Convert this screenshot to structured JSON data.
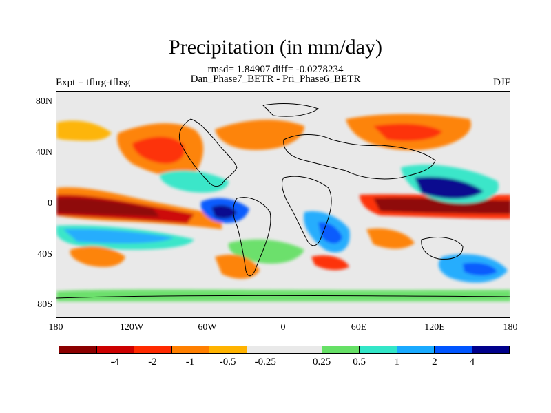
{
  "title": "Precipitation (in mm/day)",
  "stats_line": "rmsd= 1.84907 diff= -0.0278234",
  "comparison_line": "Dan_Phase7_BETR - Pri_Phase6_BETR",
  "experiment_label": "Expt = tfhrg-tfbsg",
  "season_label": "DJF",
  "y_ticks": [
    "80N",
    "40N",
    "0",
    "40S",
    "80S"
  ],
  "x_ticks": [
    "180",
    "120W",
    "60W",
    "0",
    "60E",
    "120E",
    "180"
  ],
  "colorbar": {
    "colors": [
      "#8b0000",
      "#cc0000",
      "#ff2a00",
      "#ff7f00",
      "#ffb300",
      "#e9e9e9",
      "#e9e9e9",
      "#66e066",
      "#33e6c8",
      "#1aaaff",
      "#0055ff",
      "#00008b"
    ],
    "labels": [
      "-4",
      "-2",
      "-1",
      "-0.5",
      "-0.25",
      "0.25",
      "0.5",
      "1",
      "2",
      "4"
    ]
  }
}
